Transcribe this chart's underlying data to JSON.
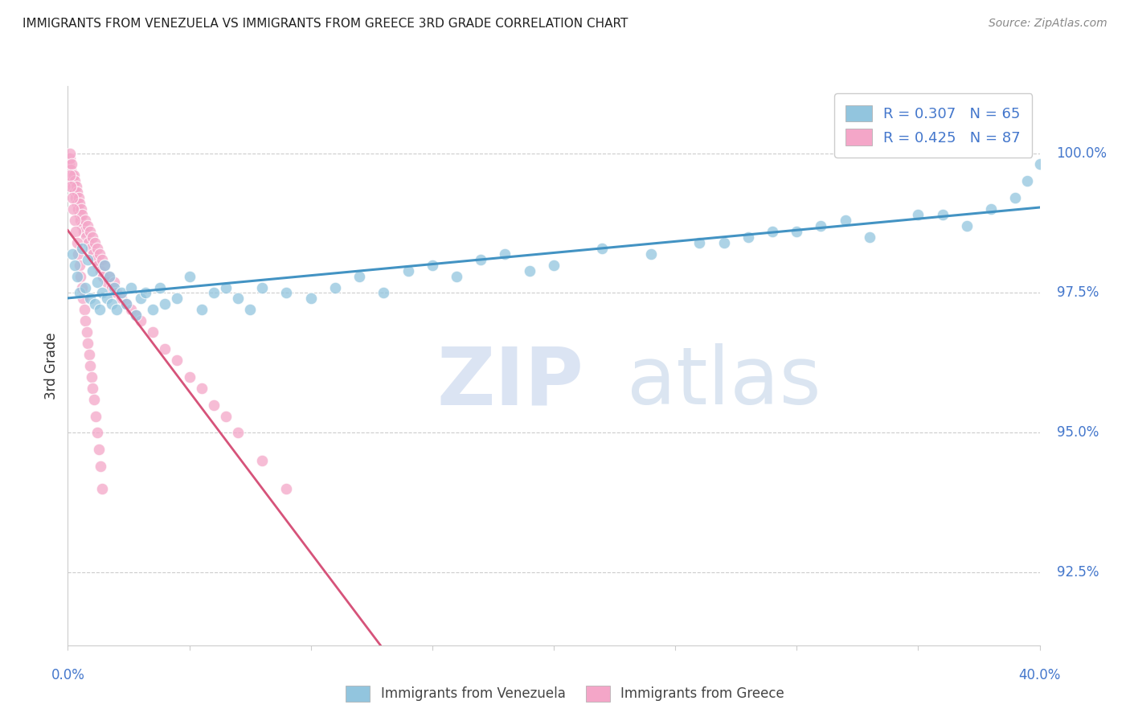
{
  "title": "IMMIGRANTS FROM VENEZUELA VS IMMIGRANTS FROM GREECE 3RD GRADE CORRELATION CHART",
  "source": "Source: ZipAtlas.com",
  "ylabel": "3rd Grade",
  "ytick_values": [
    92.5,
    95.0,
    97.5,
    100.0
  ],
  "xlim": [
    0.0,
    40.0
  ],
  "ylim": [
    91.2,
    101.2
  ],
  "legend_r1": "R = 0.307",
  "legend_n1": "N = 65",
  "legend_r2": "R = 0.425",
  "legend_n2": "N = 87",
  "color_venezuela": "#92c5de",
  "color_greece": "#f4a6c8",
  "color_venezuela_line": "#4393c3",
  "color_greece_line": "#d6537a",
  "color_axis_labels": "#4477cc",
  "venezuela_x": [
    0.2,
    0.3,
    0.4,
    0.5,
    0.6,
    0.7,
    0.8,
    0.9,
    1.0,
    1.1,
    1.2,
    1.3,
    1.4,
    1.5,
    1.6,
    1.7,
    1.8,
    1.9,
    2.0,
    2.2,
    2.4,
    2.6,
    2.8,
    3.0,
    3.2,
    3.5,
    3.8,
    4.0,
    4.5,
    5.0,
    5.5,
    6.0,
    6.5,
    7.0,
    7.5,
    8.0,
    9.0,
    10.0,
    11.0,
    12.0,
    13.0,
    14.0,
    15.0,
    16.0,
    17.0,
    18.0,
    19.0,
    20.0,
    22.0,
    24.0,
    26.0,
    28.0,
    30.0,
    32.0,
    35.0,
    37.0,
    38.0,
    39.0,
    39.5,
    40.0,
    27.0,
    29.0,
    31.0,
    33.0,
    36.0
  ],
  "venezuela_y": [
    98.2,
    98.0,
    97.8,
    97.5,
    98.3,
    97.6,
    98.1,
    97.4,
    97.9,
    97.3,
    97.7,
    97.2,
    97.5,
    98.0,
    97.4,
    97.8,
    97.3,
    97.6,
    97.2,
    97.5,
    97.3,
    97.6,
    97.1,
    97.4,
    97.5,
    97.2,
    97.6,
    97.3,
    97.4,
    97.8,
    97.2,
    97.5,
    97.6,
    97.4,
    97.2,
    97.6,
    97.5,
    97.4,
    97.6,
    97.8,
    97.5,
    97.9,
    98.0,
    97.8,
    98.1,
    98.2,
    97.9,
    98.0,
    98.3,
    98.2,
    98.4,
    98.5,
    98.6,
    98.8,
    98.9,
    98.7,
    99.0,
    99.2,
    99.5,
    99.8,
    98.4,
    98.6,
    98.7,
    98.5,
    98.9
  ],
  "greece_x": [
    0.05,
    0.08,
    0.1,
    0.12,
    0.15,
    0.18,
    0.2,
    0.22,
    0.25,
    0.28,
    0.3,
    0.32,
    0.35,
    0.38,
    0.4,
    0.42,
    0.45,
    0.48,
    0.5,
    0.52,
    0.55,
    0.58,
    0.6,
    0.65,
    0.7,
    0.75,
    0.8,
    0.85,
    0.9,
    0.95,
    1.0,
    1.05,
    1.1,
    1.15,
    1.2,
    1.25,
    1.3,
    1.35,
    1.4,
    1.45,
    1.5,
    1.6,
    1.7,
    1.8,
    1.9,
    2.0,
    2.2,
    2.4,
    2.6,
    2.8,
    3.0,
    3.5,
    4.0,
    4.5,
    5.0,
    5.5,
    6.0,
    6.5,
    7.0,
    8.0,
    9.0,
    0.08,
    0.12,
    0.18,
    0.22,
    0.28,
    0.32,
    0.38,
    0.42,
    0.48,
    0.52,
    0.58,
    0.62,
    0.68,
    0.72,
    0.78,
    0.82,
    0.88,
    0.92,
    0.98,
    1.02,
    1.08,
    1.15,
    1.22,
    1.28,
    1.35,
    1.42
  ],
  "greece_y": [
    99.8,
    99.9,
    100.0,
    99.7,
    99.8,
    99.6,
    99.5,
    99.4,
    99.6,
    99.3,
    99.5,
    99.2,
    99.4,
    99.1,
    99.3,
    99.0,
    99.2,
    98.9,
    99.1,
    98.8,
    99.0,
    98.7,
    98.9,
    98.6,
    98.8,
    98.5,
    98.7,
    98.4,
    98.6,
    98.3,
    98.5,
    98.2,
    98.4,
    98.1,
    98.3,
    98.0,
    98.2,
    97.9,
    98.1,
    97.8,
    98.0,
    97.7,
    97.8,
    97.6,
    97.7,
    97.5,
    97.4,
    97.3,
    97.2,
    97.1,
    97.0,
    96.8,
    96.5,
    96.3,
    96.0,
    95.8,
    95.5,
    95.3,
    95.0,
    94.5,
    94.0,
    99.6,
    99.4,
    99.2,
    99.0,
    98.8,
    98.6,
    98.4,
    98.2,
    98.0,
    97.8,
    97.6,
    97.4,
    97.2,
    97.0,
    96.8,
    96.6,
    96.4,
    96.2,
    96.0,
    95.8,
    95.6,
    95.3,
    95.0,
    94.7,
    94.4,
    94.0
  ]
}
